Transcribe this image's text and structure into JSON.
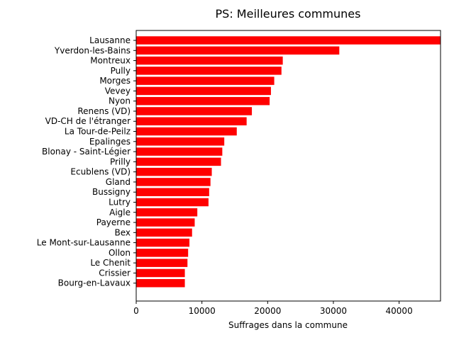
{
  "chart_data": {
    "type": "bar",
    "orientation": "horizontal",
    "title": "PS: Meilleures communes",
    "xlabel": "Suffrages dans la commune",
    "ylabel": "",
    "xlim": [
      0,
      46300
    ],
    "xticks": [
      0,
      10000,
      20000,
      30000,
      40000
    ],
    "xtick_labels": [
      "0",
      "10000",
      "20000",
      "30000",
      "40000"
    ],
    "grid": false,
    "legend": "none",
    "bar_color": "#ff0000",
    "categories": [
      "Lausanne",
      "Yverdon-les-Bains",
      "Montreux",
      "Pully",
      "Morges",
      "Vevey",
      "Nyon",
      "Renens (VD)",
      "VD-CH de l'étranger",
      "La Tour-de-Peilz",
      "Epalinges",
      "Blonay - Saint-Légier",
      "Prilly",
      "Ecublens (VD)",
      "Gland",
      "Bussigny",
      "Lutry",
      "Aigle",
      "Payerne",
      "Bex",
      "Le Mont-sur-Lausanne",
      "Ollon",
      "Le Chenit",
      "Crissier",
      "Bourg-en-Lavaux"
    ],
    "values": [
      46300,
      30900,
      22300,
      22100,
      21000,
      20500,
      20300,
      17600,
      16800,
      15300,
      13400,
      13100,
      12900,
      11500,
      11300,
      11100,
      11000,
      9300,
      8900,
      8500,
      8100,
      7900,
      7800,
      7400,
      7400
    ]
  }
}
